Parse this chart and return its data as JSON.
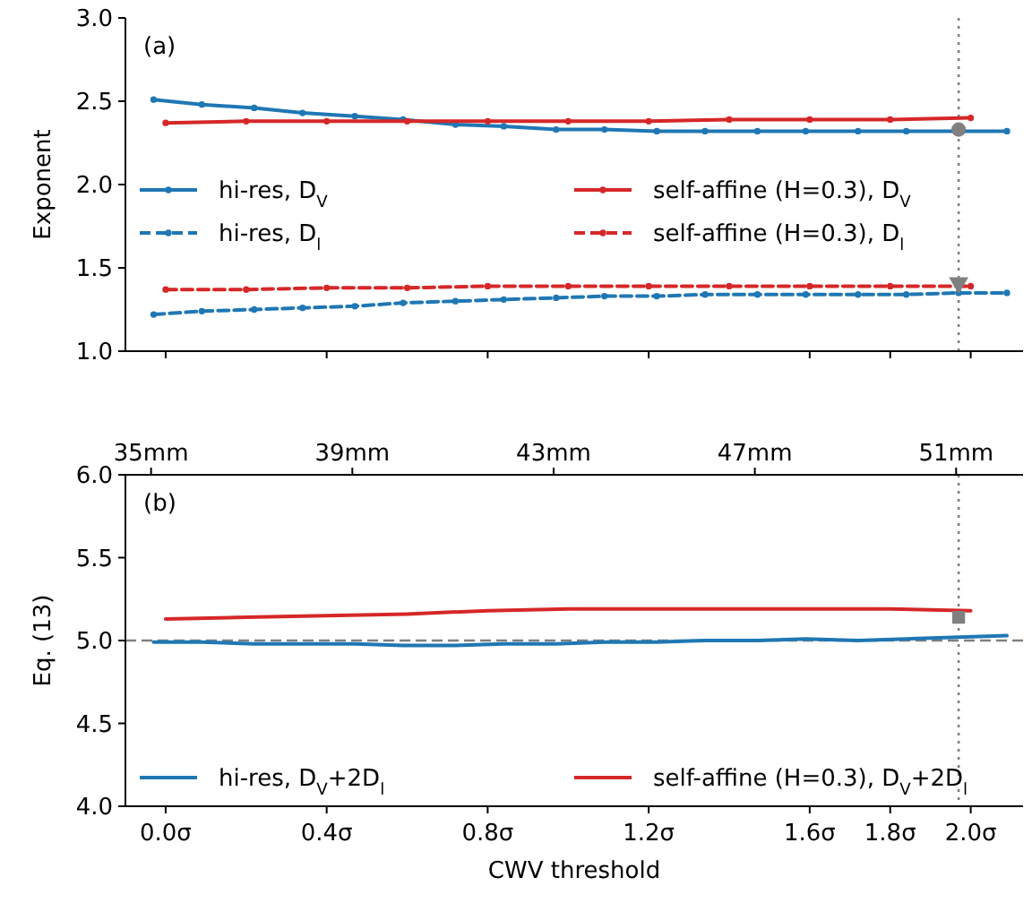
{
  "chart_data": [
    {
      "type": "line",
      "ylabel": "Exponent",
      "annotations": [
        "(a)"
      ],
      "legend": "center",
      "grid": false,
      "tick_labels": "y",
      "xlim": [
        -0.1,
        2.13
      ],
      "xticks": [
        {
          "value": 0,
          "label": null
        },
        {
          "value": 0.4,
          "label": null
        },
        {
          "value": 0.8,
          "label": null
        },
        {
          "value": 1.2,
          "label": null
        },
        {
          "value": 1.6,
          "label": null
        },
        {
          "value": 1.8,
          "label": null
        },
        {
          "value": 2.0,
          "label": null
        }
      ],
      "ylim": [
        1.0,
        3.0
      ],
      "yticks": [
        {
          "value": 1.0,
          "label": "1.0"
        },
        {
          "value": 1.5,
          "label": "1.5"
        },
        {
          "value": 2.0,
          "label": "2.0"
        },
        {
          "value": 2.5,
          "label": "2.5"
        },
        {
          "value": 3.0,
          "label": "3.0"
        }
      ],
      "ref_lines": [
        {
          "axis": "x",
          "value": 1.97,
          "color": "#808080",
          "line_style": "dotted"
        }
      ],
      "series": [
        {
          "name": "hi-res, D$_{V}$",
          "color": "#1f77b4",
          "marker": "circle",
          "line_style": "solid",
          "x": [
            -0.03,
            0.09,
            0.22,
            0.34,
            0.47,
            0.59,
            0.72,
            0.84,
            0.97,
            1.09,
            1.22,
            1.34,
            1.47,
            1.59,
            1.72,
            1.84,
            1.97,
            2.09
          ],
          "values": [
            2.51,
            2.48,
            2.46,
            2.43,
            2.41,
            2.39,
            2.36,
            2.35,
            2.33,
            2.33,
            2.32,
            2.32,
            2.32,
            2.32,
            2.32,
            2.32,
            2.32,
            2.32
          ]
        },
        {
          "name": "hi-res, D$_{l}$",
          "color": "#1f77b4",
          "marker": "circle",
          "line_style": "dashed",
          "x": [
            -0.03,
            0.09,
            0.22,
            0.34,
            0.47,
            0.59,
            0.72,
            0.84,
            0.97,
            1.09,
            1.22,
            1.34,
            1.47,
            1.59,
            1.72,
            1.84,
            1.97,
            2.09
          ],
          "values": [
            1.22,
            1.24,
            1.25,
            1.26,
            1.27,
            1.29,
            1.3,
            1.31,
            1.32,
            1.33,
            1.33,
            1.34,
            1.34,
            1.34,
            1.34,
            1.34,
            1.35,
            1.35
          ]
        },
        {
          "name": "self-affine (H=0.3), D$_{V}$",
          "color": "#d62728",
          "marker": "circle",
          "line_style": "solid",
          "x": [
            0,
            0.2,
            0.4,
            0.6,
            0.8,
            1.0,
            1.2,
            1.4,
            1.6,
            1.8,
            2.0
          ],
          "values": [
            2.37,
            2.38,
            2.38,
            2.38,
            2.38,
            2.38,
            2.38,
            2.39,
            2.39,
            2.39,
            2.4
          ]
        },
        {
          "name": "self-affine (H=0.3), D$_{l}$",
          "color": "#d62728",
          "marker": "circle",
          "line_style": "dashed",
          "x": [
            0,
            0.2,
            0.4,
            0.6,
            0.8,
            1.0,
            1.2,
            1.4,
            1.6,
            1.8,
            2.0
          ],
          "values": [
            1.37,
            1.37,
            1.38,
            1.38,
            1.39,
            1.39,
            1.39,
            1.39,
            1.39,
            1.39,
            1.39
          ]
        },
        {
          "type": "scatter",
          "color": "#808080",
          "marker": "circle",
          "x": [
            1.97
          ],
          "values": [
            2.33
          ]
        },
        {
          "type": "scatter",
          "color": "#808080",
          "marker": "triangle",
          "x": [
            1.97
          ],
          "values": [
            1.41
          ]
        }
      ]
    },
    {
      "type": "line",
      "ylabel": "Eq. (13)",
      "xlabel": "CWV threshold",
      "annotations": [
        "(b)"
      ],
      "legend": "bottom",
      "grid": false,
      "xlim": [
        -0.1,
        2.13
      ],
      "xticks": [
        {
          "value": 0,
          "label": "0.0σ"
        },
        {
          "value": 0.4,
          "label": "0.4σ"
        },
        {
          "value": 0.8,
          "label": "0.8σ"
        },
        {
          "value": 1.2,
          "label": "1.2σ"
        },
        {
          "value": 1.6,
          "label": "1.6σ"
        },
        {
          "value": 1.8,
          "label": "1.8σ"
        },
        {
          "value": 2.0,
          "label": "2.0σ"
        }
      ],
      "x2lim": [
        34.49,
        52.33
      ],
      "x2ticks": [
        {
          "value": 35,
          "label": "35mm"
        },
        {
          "value": 39,
          "label": "39mm"
        },
        {
          "value": 43,
          "label": "43mm"
        },
        {
          "value": 47,
          "label": "47mm"
        },
        {
          "value": 51,
          "label": "51mm"
        }
      ],
      "ylim": [
        4.0,
        6.0
      ],
      "yticks": [
        {
          "value": 4.0,
          "label": "4.0"
        },
        {
          "value": 4.5,
          "label": "4.5"
        },
        {
          "value": 5.0,
          "label": "5.0"
        },
        {
          "value": 5.5,
          "label": "5.5"
        },
        {
          "value": 6.0,
          "label": "6.0"
        }
      ],
      "ref_lines": [
        {
          "axis": "x",
          "value": 1.97,
          "color": "#808080",
          "line_style": "dotted"
        },
        {
          "axis": "y",
          "value": 5.0,
          "color": "#808080",
          "line_style": "dashed"
        }
      ],
      "series": [
        {
          "name": "hi-res, D$_{V}$+2D$_{l}$",
          "color": "#1f77b4",
          "marker": "none",
          "line_style": "solid",
          "x": [
            -0.03,
            0.09,
            0.22,
            0.34,
            0.47,
            0.59,
            0.72,
            0.84,
            0.97,
            1.09,
            1.22,
            1.34,
            1.47,
            1.59,
            1.72,
            1.84,
            1.97,
            2.09
          ],
          "values": [
            4.99,
            4.99,
            4.98,
            4.98,
            4.98,
            4.97,
            4.97,
            4.98,
            4.98,
            4.99,
            4.99,
            5.0,
            5.0,
            5.01,
            5.0,
            5.01,
            5.02,
            5.03
          ]
        },
        {
          "name": "self-affine (H=0.3), D$_{V}$+2D$_{l}$",
          "color": "#d62728",
          "marker": "none",
          "line_style": "solid",
          "x": [
            0,
            0.2,
            0.4,
            0.6,
            0.8,
            1.0,
            1.2,
            1.4,
            1.6,
            1.8,
            2.0
          ],
          "values": [
            5.13,
            5.14,
            5.15,
            5.16,
            5.18,
            5.19,
            5.19,
            5.19,
            5.19,
            5.19,
            5.18
          ]
        },
        {
          "type": "scatter",
          "color": "#808080",
          "marker": "square",
          "x": [
            1.97
          ],
          "values": [
            5.14
          ]
        }
      ]
    }
  ]
}
